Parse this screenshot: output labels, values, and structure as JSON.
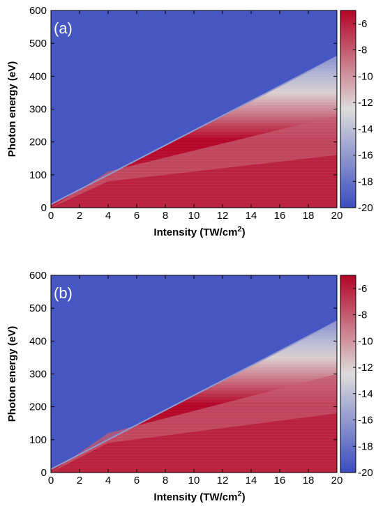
{
  "figure": {
    "colormap": {
      "name": "coolwarm",
      "low_color": "#3b4cc0",
      "mid_color": "#dddcdc",
      "high_color": "#b40426"
    }
  },
  "chart_data": [
    {
      "type": "heatmap",
      "panel_label": "(a)",
      "xlabel": "Intensity (TW/cm",
      "xlabel_sup": "2",
      "xlabel_close": ")",
      "ylabel": "Photon energy  (eV)",
      "xlim": [
        0,
        20
      ],
      "ylim": [
        0,
        600
      ],
      "x_ticks": [
        "0",
        "2",
        "4",
        "6",
        "8",
        "10",
        "12",
        "14",
        "16",
        "18",
        "20"
      ],
      "y_ticks": [
        "0",
        "100",
        "200",
        "300",
        "400",
        "500",
        "600"
      ],
      "colorbar": {
        "range": [
          -20,
          -5
        ],
        "ticks": [
          "-6",
          "-8",
          "-10",
          "-12",
          "-14",
          "-16",
          "-18",
          "-20"
        ]
      },
      "cutoff_energy_eV": {
        "x": [
          0,
          20
        ],
        "y": [
          10,
          460
        ]
      },
      "strong_band_upper_eV": {
        "x": [
          0,
          4,
          20
        ],
        "y": [
          0,
          80,
          160
        ]
      },
      "mid_band_upper_eV": {
        "x": [
          0,
          4,
          20
        ],
        "y": [
          0,
          110,
          280
        ]
      },
      "background_log_value": -19.5,
      "plateau_log_value": -6
    },
    {
      "type": "heatmap",
      "panel_label": "(b)",
      "xlabel": "Intensity (TW/cm",
      "xlabel_sup": "2",
      "xlabel_close": ")",
      "ylabel": "Photon energy  (eV)",
      "xlim": [
        0,
        20
      ],
      "ylim": [
        0,
        600
      ],
      "x_ticks": [
        "0",
        "2",
        "4",
        "6",
        "8",
        "10",
        "12",
        "14",
        "16",
        "18",
        "20"
      ],
      "y_ticks": [
        "0",
        "100",
        "200",
        "300",
        "400",
        "500",
        "600"
      ],
      "colorbar": {
        "range": [
          -20,
          -5
        ],
        "ticks": [
          "-6",
          "-8",
          "-10",
          "-12",
          "-14",
          "-16",
          "-18",
          "-20"
        ]
      },
      "cutoff_energy_eV": {
        "x": [
          0,
          20
        ],
        "y": [
          10,
          460
        ]
      },
      "strong_band_upper_eV": {
        "x": [
          0,
          4,
          20
        ],
        "y": [
          0,
          90,
          180
        ]
      },
      "mid_band_upper_eV": {
        "x": [
          0,
          4,
          20
        ],
        "y": [
          0,
          120,
          300
        ]
      },
      "background_log_value": -19.5,
      "plateau_log_value": -6
    }
  ]
}
